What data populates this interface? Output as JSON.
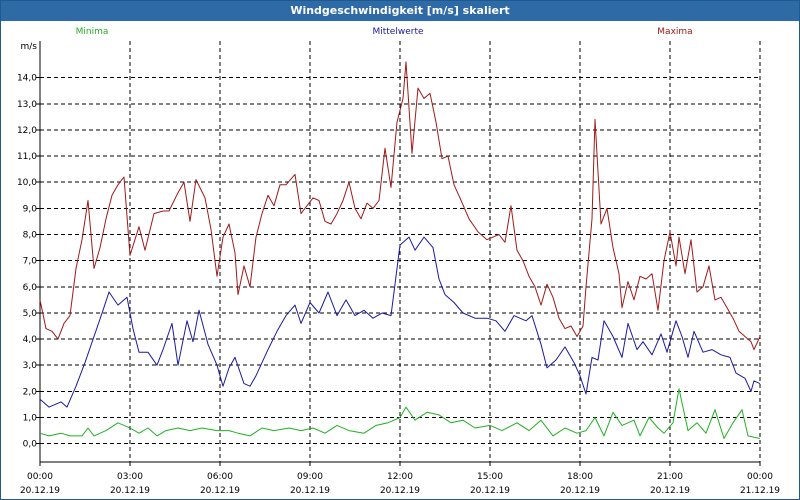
{
  "window": {
    "title": "Windgeschwindigkeit [m/s] skaliert"
  },
  "colors": {
    "title_bar": "#2e6aa6",
    "minima": "#22b022",
    "mittelwerte": "#1a1aa0",
    "maxima": "#a01a1a",
    "grid": "#000000"
  },
  "chart_data": {
    "type": "line",
    "title": "Windgeschwindigkeit [m/s] skaliert",
    "ylabel": "m/s",
    "ylim": [
      -0.7,
      15.4
    ],
    "yticks": [
      "0,0",
      "1,0",
      "2,0",
      "3,0",
      "4,0",
      "5,0",
      "6,0",
      "7,0",
      "8,0",
      "9,0",
      "10,0",
      "11,0",
      "12,0",
      "13,0",
      "14,0"
    ],
    "xlim": [
      0,
      24
    ],
    "xticks": [
      {
        "time": "00:00",
        "date": "20.12.19",
        "h": 0
      },
      {
        "time": "03:00",
        "date": "20.12.19",
        "h": 3
      },
      {
        "time": "06:00",
        "date": "20.12.19",
        "h": 6
      },
      {
        "time": "09:00",
        "date": "20.12.19",
        "h": 9
      },
      {
        "time": "12:00",
        "date": "20.12.19",
        "h": 12
      },
      {
        "time": "15:00",
        "date": "20.12.19",
        "h": 15
      },
      {
        "time": "18:00",
        "date": "20.12.19",
        "h": 18
      },
      {
        "time": "21:00",
        "date": "20.12.19",
        "h": 21
      },
      {
        "time": "00:00",
        "date": "21.12.19",
        "h": 24
      }
    ],
    "grid": true,
    "legend_position": "top",
    "series": [
      {
        "name": "Minima",
        "color": "#22b022",
        "points": [
          [
            0,
            0.4
          ],
          [
            0.3,
            0.3
          ],
          [
            0.7,
            0.4
          ],
          [
            1.0,
            0.3
          ],
          [
            1.4,
            0.3
          ],
          [
            1.6,
            0.6
          ],
          [
            1.8,
            0.3
          ],
          [
            2.2,
            0.5
          ],
          [
            2.6,
            0.8
          ],
          [
            3.0,
            0.6
          ],
          [
            3.3,
            0.4
          ],
          [
            3.6,
            0.6
          ],
          [
            3.9,
            0.3
          ],
          [
            4.2,
            0.5
          ],
          [
            4.6,
            0.6
          ],
          [
            5.0,
            0.5
          ],
          [
            5.4,
            0.6
          ],
          [
            5.9,
            0.5
          ],
          [
            6.3,
            0.5
          ],
          [
            6.6,
            0.4
          ],
          [
            7.0,
            0.3
          ],
          [
            7.4,
            0.6
          ],
          [
            7.8,
            0.5
          ],
          [
            8.3,
            0.6
          ],
          [
            8.7,
            0.5
          ],
          [
            9.1,
            0.6
          ],
          [
            9.5,
            0.4
          ],
          [
            9.9,
            0.7
          ],
          [
            10.3,
            0.5
          ],
          [
            10.8,
            0.4
          ],
          [
            11.2,
            0.7
          ],
          [
            11.6,
            0.8
          ],
          [
            12.0,
            1.0
          ],
          [
            12.2,
            1.4
          ],
          [
            12.5,
            0.9
          ],
          [
            12.9,
            1.2
          ],
          [
            13.3,
            1.1
          ],
          [
            13.7,
            0.8
          ],
          [
            14.1,
            0.9
          ],
          [
            14.5,
            0.6
          ],
          [
            15.0,
            0.7
          ],
          [
            15.4,
            0.5
          ],
          [
            15.9,
            0.8
          ],
          [
            16.3,
            0.5
          ],
          [
            16.7,
            0.9
          ],
          [
            17.1,
            0.3
          ],
          [
            17.5,
            0.6
          ],
          [
            17.9,
            0.4
          ],
          [
            18.2,
            0.5
          ],
          [
            18.5,
            1.0
          ],
          [
            18.8,
            0.3
          ],
          [
            19.1,
            1.2
          ],
          [
            19.4,
            0.7
          ],
          [
            19.8,
            0.9
          ],
          [
            20.0,
            0.3
          ],
          [
            20.3,
            1.0
          ],
          [
            20.6,
            0.6
          ],
          [
            20.8,
            0.4
          ],
          [
            21.1,
            0.8
          ],
          [
            21.3,
            2.1
          ],
          [
            21.6,
            0.5
          ],
          [
            21.9,
            0.8
          ],
          [
            22.2,
            0.4
          ],
          [
            22.5,
            1.3
          ],
          [
            22.8,
            0.2
          ],
          [
            23.1,
            0.8
          ],
          [
            23.4,
            1.3
          ],
          [
            23.6,
            0.3
          ],
          [
            24.0,
            0.2
          ]
        ]
      },
      {
        "name": "Mittelwerte",
        "color": "#1a1aa0",
        "points": [
          [
            0,
            1.7
          ],
          [
            0.3,
            1.4
          ],
          [
            0.7,
            1.6
          ],
          [
            0.9,
            1.4
          ],
          [
            1.2,
            2.2
          ],
          [
            1.5,
            3.1
          ],
          [
            1.8,
            4.1
          ],
          [
            2.1,
            5.1
          ],
          [
            2.3,
            5.8
          ],
          [
            2.6,
            5.3
          ],
          [
            2.9,
            5.6
          ],
          [
            3.1,
            4.4
          ],
          [
            3.3,
            3.5
          ],
          [
            3.6,
            3.5
          ],
          [
            3.9,
            3.0
          ],
          [
            4.1,
            3.6
          ],
          [
            4.4,
            4.6
          ],
          [
            4.6,
            3.0
          ],
          [
            4.9,
            4.7
          ],
          [
            5.1,
            3.9
          ],
          [
            5.3,
            5.1
          ],
          [
            5.6,
            3.8
          ],
          [
            5.9,
            3.0
          ],
          [
            6.1,
            2.2
          ],
          [
            6.3,
            2.9
          ],
          [
            6.5,
            3.3
          ],
          [
            6.8,
            2.3
          ],
          [
            7.0,
            2.2
          ],
          [
            7.2,
            2.6
          ],
          [
            7.6,
            3.6
          ],
          [
            7.9,
            4.3
          ],
          [
            8.2,
            4.9
          ],
          [
            8.5,
            5.3
          ],
          [
            8.7,
            4.6
          ],
          [
            9.0,
            5.4
          ],
          [
            9.3,
            5.0
          ],
          [
            9.6,
            5.8
          ],
          [
            9.9,
            4.9
          ],
          [
            10.2,
            5.5
          ],
          [
            10.5,
            4.9
          ],
          [
            10.8,
            5.1
          ],
          [
            11.1,
            4.8
          ],
          [
            11.4,
            5.0
          ],
          [
            11.7,
            4.9
          ],
          [
            12.0,
            7.6
          ],
          [
            12.3,
            7.9
          ],
          [
            12.5,
            7.4
          ],
          [
            12.8,
            7.9
          ],
          [
            13.1,
            7.5
          ],
          [
            13.3,
            6.3
          ],
          [
            13.5,
            5.7
          ],
          [
            13.8,
            5.4
          ],
          [
            14.1,
            5.0
          ],
          [
            14.5,
            4.8
          ],
          [
            14.9,
            4.8
          ],
          [
            15.2,
            4.7
          ],
          [
            15.5,
            4.3
          ],
          [
            15.8,
            4.9
          ],
          [
            16.2,
            4.7
          ],
          [
            16.4,
            4.9
          ],
          [
            16.7,
            3.8
          ],
          [
            16.9,
            2.9
          ],
          [
            17.2,
            3.2
          ],
          [
            17.5,
            3.7
          ],
          [
            17.8,
            3.1
          ],
          [
            18.0,
            2.6
          ],
          [
            18.2,
            1.9
          ],
          [
            18.4,
            3.3
          ],
          [
            18.6,
            3.2
          ],
          [
            18.8,
            4.7
          ],
          [
            19.1,
            4.1
          ],
          [
            19.4,
            3.3
          ],
          [
            19.6,
            4.6
          ],
          [
            19.9,
            3.6
          ],
          [
            20.1,
            3.9
          ],
          [
            20.4,
            3.4
          ],
          [
            20.7,
            4.2
          ],
          [
            20.9,
            3.5
          ],
          [
            21.2,
            4.7
          ],
          [
            21.4,
            4.1
          ],
          [
            21.6,
            3.3
          ],
          [
            21.8,
            4.3
          ],
          [
            22.1,
            3.5
          ],
          [
            22.4,
            3.6
          ],
          [
            22.7,
            3.4
          ],
          [
            23.0,
            3.3
          ],
          [
            23.2,
            2.7
          ],
          [
            23.5,
            2.5
          ],
          [
            23.7,
            2.0
          ],
          [
            23.8,
            2.4
          ],
          [
            24.0,
            2.3
          ]
        ]
      },
      {
        "name": "Maxima",
        "color": "#a01a1a",
        "points": [
          [
            0,
            5.5
          ],
          [
            0.2,
            4.4
          ],
          [
            0.4,
            4.3
          ],
          [
            0.6,
            4.0
          ],
          [
            0.8,
            4.6
          ],
          [
            1.0,
            4.9
          ],
          [
            1.2,
            6.7
          ],
          [
            1.4,
            7.8
          ],
          [
            1.6,
            9.3
          ],
          [
            1.8,
            6.7
          ],
          [
            2.0,
            7.5
          ],
          [
            2.2,
            8.6
          ],
          [
            2.4,
            9.5
          ],
          [
            2.6,
            9.9
          ],
          [
            2.8,
            10.2
          ],
          [
            3.0,
            7.2
          ],
          [
            3.3,
            8.3
          ],
          [
            3.5,
            7.4
          ],
          [
            3.8,
            8.8
          ],
          [
            4.1,
            8.9
          ],
          [
            4.3,
            8.9
          ],
          [
            4.6,
            9.6
          ],
          [
            4.8,
            10.0
          ],
          [
            5.0,
            8.5
          ],
          [
            5.2,
            10.1
          ],
          [
            5.5,
            9.4
          ],
          [
            5.7,
            8.2
          ],
          [
            5.9,
            6.4
          ],
          [
            6.1,
            7.9
          ],
          [
            6.3,
            8.4
          ],
          [
            6.5,
            7.3
          ],
          [
            6.6,
            5.7
          ],
          [
            6.8,
            6.8
          ],
          [
            7.0,
            6.0
          ],
          [
            7.2,
            7.9
          ],
          [
            7.4,
            8.8
          ],
          [
            7.6,
            9.5
          ],
          [
            7.8,
            9.1
          ],
          [
            8.0,
            9.9
          ],
          [
            8.2,
            9.9
          ],
          [
            8.5,
            10.3
          ],
          [
            8.7,
            8.8
          ],
          [
            8.9,
            9.1
          ],
          [
            9.1,
            9.4
          ],
          [
            9.3,
            9.3
          ],
          [
            9.5,
            8.5
          ],
          [
            9.7,
            8.4
          ],
          [
            9.9,
            8.8
          ],
          [
            10.1,
            9.3
          ],
          [
            10.3,
            10.0
          ],
          [
            10.5,
            9.0
          ],
          [
            10.7,
            8.6
          ],
          [
            10.9,
            9.2
          ],
          [
            11.1,
            9.0
          ],
          [
            11.3,
            9.3
          ],
          [
            11.5,
            11.3
          ],
          [
            11.7,
            9.8
          ],
          [
            11.9,
            12.3
          ],
          [
            12.1,
            13.2
          ],
          [
            12.2,
            14.6
          ],
          [
            12.4,
            11.1
          ],
          [
            12.6,
            13.6
          ],
          [
            12.8,
            13.2
          ],
          [
            13.0,
            13.4
          ],
          [
            13.2,
            12.3
          ],
          [
            13.4,
            10.9
          ],
          [
            13.6,
            11.0
          ],
          [
            13.8,
            9.9
          ],
          [
            14.0,
            9.4
          ],
          [
            14.3,
            8.6
          ],
          [
            14.6,
            8.1
          ],
          [
            14.9,
            7.8
          ],
          [
            15.1,
            7.9
          ],
          [
            15.3,
            8.0
          ],
          [
            15.5,
            7.7
          ],
          [
            15.7,
            9.1
          ],
          [
            15.9,
            7.4
          ],
          [
            16.1,
            7.0
          ],
          [
            16.3,
            6.4
          ],
          [
            16.5,
            6.0
          ],
          [
            16.7,
            5.3
          ],
          [
            16.9,
            6.1
          ],
          [
            17.1,
            5.6
          ],
          [
            17.3,
            4.8
          ],
          [
            17.5,
            4.4
          ],
          [
            17.7,
            4.5
          ],
          [
            17.9,
            4.1
          ],
          [
            18.1,
            4.5
          ],
          [
            18.2,
            6.0
          ],
          [
            18.4,
            8.6
          ],
          [
            18.5,
            12.4
          ],
          [
            18.7,
            8.4
          ],
          [
            18.9,
            9.0
          ],
          [
            19.1,
            7.5
          ],
          [
            19.3,
            6.5
          ],
          [
            19.4,
            5.2
          ],
          [
            19.6,
            6.2
          ],
          [
            19.8,
            5.5
          ],
          [
            20.0,
            6.4
          ],
          [
            20.2,
            6.3
          ],
          [
            20.4,
            6.5
          ],
          [
            20.6,
            5.1
          ],
          [
            20.8,
            7.0
          ],
          [
            21.0,
            8.1
          ],
          [
            21.2,
            6.8
          ],
          [
            21.3,
            7.9
          ],
          [
            21.5,
            6.5
          ],
          [
            21.7,
            7.8
          ],
          [
            21.9,
            5.8
          ],
          [
            22.1,
            6.0
          ],
          [
            22.3,
            6.8
          ],
          [
            22.5,
            5.5
          ],
          [
            22.7,
            5.6
          ],
          [
            22.9,
            5.2
          ],
          [
            23.1,
            4.8
          ],
          [
            23.3,
            4.3
          ],
          [
            23.5,
            4.1
          ],
          [
            23.7,
            3.9
          ],
          [
            23.8,
            3.6
          ],
          [
            24.0,
            4.1
          ]
        ]
      }
    ]
  }
}
